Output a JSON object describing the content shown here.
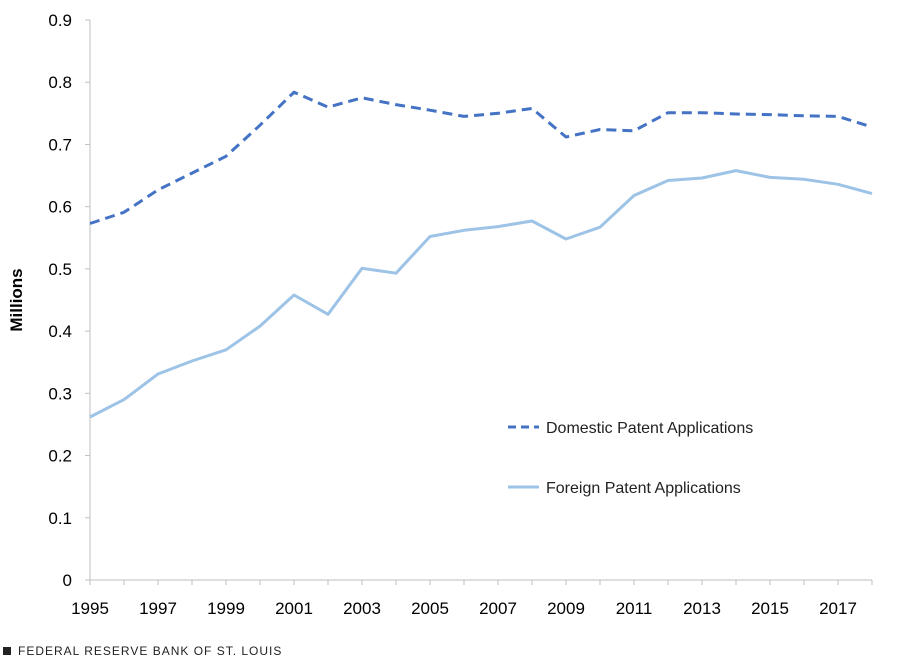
{
  "chart_data": {
    "type": "line",
    "title": "",
    "xlabel": "",
    "ylabel": "Millions",
    "xlim": [
      1995,
      2018
    ],
    "ylim": [
      0,
      0.9
    ],
    "x_ticks": [
      "1995",
      "1997",
      "1999",
      "2001",
      "2003",
      "2005",
      "2007",
      "2009",
      "2011",
      "2013",
      "2015",
      "2017"
    ],
    "y_ticks": [
      "0",
      "0.1",
      "0.2",
      "0.3",
      "0.4",
      "0.5",
      "0.6",
      "0.7",
      "0.8",
      "0.9"
    ],
    "grid": false,
    "legend_position": "lower-right",
    "x": [
      1995,
      1996,
      1997,
      1998,
      1999,
      2000,
      2001,
      2002,
      2003,
      2004,
      2005,
      2006,
      2007,
      2008,
      2009,
      2010,
      2011,
      2012,
      2013,
      2014,
      2015,
      2016,
      2017,
      2018
    ],
    "series": [
      {
        "name": "Domestic Patent Applications",
        "style": "dashed",
        "color": "#4472c4",
        "values": [
          0.573,
          0.591,
          0.627,
          0.654,
          0.681,
          0.731,
          0.784,
          0.76,
          0.775,
          0.764,
          0.755,
          0.745,
          0.75,
          0.758,
          0.712,
          0.724,
          0.722,
          0.751,
          0.751,
          0.749,
          0.748,
          0.746,
          0.745,
          0.728
        ]
      },
      {
        "name": "Foreign Patent Applications",
        "style": "solid",
        "color": "#9dc3e6",
        "values": [
          0.262,
          0.29,
          0.331,
          0.352,
          0.37,
          0.408,
          0.458,
          0.427,
          0.501,
          0.493,
          0.552,
          0.562,
          0.568,
          0.577,
          0.548,
          0.567,
          0.618,
          0.642,
          0.646,
          0.658,
          0.647,
          0.644,
          0.636,
          0.621
        ]
      }
    ]
  },
  "footer": {
    "source_text": "FEDERAL RESERVE BANK OF ST. LOUIS"
  }
}
